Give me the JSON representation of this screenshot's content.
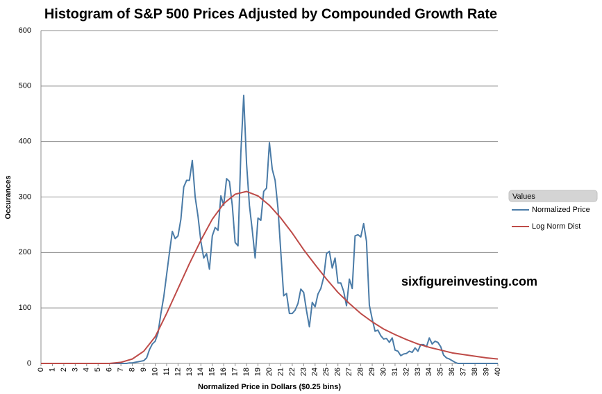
{
  "chart_data": {
    "type": "line",
    "title": "Histogram of S&P 500 Prices Adjusted by Compounded  Growth Rate",
    "x_label": "Normalized Price in Dollars  ($0.25 bins)",
    "y_label": "Occurances",
    "annotation": "sixfigureinvesting.com",
    "legend_title": "Values",
    "legend": "right",
    "grid": true,
    "xlim": [
      0,
      40
    ],
    "ylim": [
      0,
      600
    ],
    "xticks": [
      0,
      1,
      2,
      3,
      4,
      5,
      6,
      7,
      8,
      9,
      10,
      11,
      12,
      13,
      14,
      15,
      16,
      17,
      18,
      19,
      20,
      21,
      22,
      23,
      24,
      25,
      26,
      27,
      28,
      29,
      30,
      31,
      32,
      33,
      34,
      35,
      36,
      37,
      38,
      39,
      40
    ],
    "yticks": [
      0,
      100,
      200,
      300,
      400,
      500,
      600
    ],
    "series": [
      {
        "name": "Normalized Price",
        "color": "#4a7ba7",
        "x": [
          0,
          7,
          7.25,
          7.5,
          7.75,
          8,
          8.25,
          8.5,
          8.75,
          9,
          9.25,
          9.5,
          9.75,
          10,
          10.25,
          10.5,
          10.75,
          11,
          11.25,
          11.5,
          11.75,
          12,
          12.25,
          12.5,
          12.75,
          13,
          13.25,
          13.5,
          13.75,
          14,
          14.25,
          14.5,
          14.75,
          15,
          15.25,
          15.5,
          15.75,
          16,
          16.25,
          16.5,
          16.75,
          17,
          17.25,
          17.5,
          17.75,
          18,
          18.25,
          18.5,
          18.75,
          19,
          19.25,
          19.5,
          19.75,
          20,
          20.25,
          20.5,
          20.75,
          21,
          21.25,
          21.5,
          21.75,
          22,
          22.25,
          22.5,
          22.75,
          23,
          23.25,
          23.5,
          23.75,
          24,
          24.25,
          24.5,
          24.75,
          25,
          25.25,
          25.5,
          25.75,
          26,
          26.25,
          26.5,
          26.75,
          27,
          27.25,
          27.5,
          27.75,
          28,
          28.25,
          28.5,
          28.75,
          29,
          29.25,
          29.5,
          29.75,
          30,
          30.25,
          30.5,
          30.75,
          31,
          31.25,
          31.5,
          31.75,
          32,
          32.25,
          32.5,
          32.75,
          33,
          33.25,
          33.5,
          33.75,
          34,
          34.25,
          34.5,
          34.75,
          35,
          35.25,
          35.5,
          35.75,
          36,
          36.25,
          36.5,
          40
        ],
        "values": [
          0,
          0,
          0,
          0,
          1,
          1,
          2,
          3,
          4,
          5,
          10,
          25,
          35,
          40,
          55,
          90,
          120,
          160,
          200,
          238,
          225,
          230,
          260,
          318,
          330,
          330,
          366,
          300,
          265,
          220,
          190,
          198,
          170,
          230,
          245,
          240,
          302,
          285,
          333,
          328,
          285,
          218,
          212,
          380,
          483,
          360,
          285,
          240,
          190,
          262,
          258,
          310,
          316,
          398,
          350,
          330,
          280,
          200,
          122,
          126,
          90,
          90,
          96,
          108,
          134,
          128,
          95,
          66,
          110,
          102,
          125,
          135,
          155,
          198,
          202,
          172,
          190,
          145,
          145,
          130,
          104,
          152,
          135,
          230,
          232,
          228,
          252,
          220,
          105,
          80,
          58,
          60,
          50,
          44,
          45,
          38,
          46,
          24,
          22,
          14,
          17,
          18,
          22,
          20,
          28,
          22,
          34,
          34,
          30,
          46,
          35,
          40,
          38,
          30,
          15,
          10,
          8,
          5,
          2,
          0,
          0
        ]
      },
      {
        "name": "Log Norm Dist",
        "color": "#be4b48",
        "x": [
          0,
          6,
          7,
          8,
          9,
          10,
          11,
          12,
          13,
          14,
          15,
          16,
          17,
          18,
          19,
          20,
          21,
          22,
          23,
          24,
          25,
          26,
          27,
          28,
          29,
          30,
          31,
          32,
          33,
          34,
          35,
          36,
          37,
          38,
          39,
          40
        ],
        "values": [
          0,
          0,
          2,
          8,
          22,
          48,
          90,
          135,
          180,
          222,
          260,
          288,
          305,
          310,
          302,
          285,
          262,
          235,
          205,
          178,
          152,
          128,
          108,
          90,
          75,
          62,
          52,
          43,
          35,
          29,
          24,
          19,
          16,
          13,
          10,
          8
        ]
      }
    ]
  }
}
